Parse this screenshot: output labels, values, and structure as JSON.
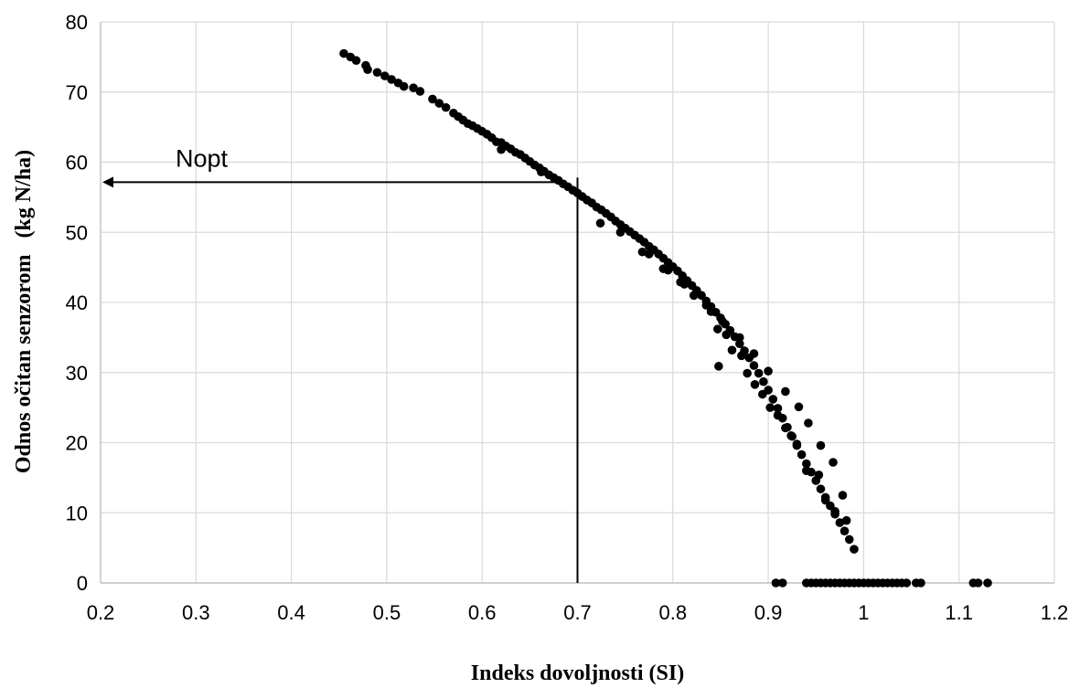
{
  "chart_data": {
    "type": "scatter",
    "title": "",
    "xlabel": "Indeks dovoljnosti (SI)",
    "ylabel": "Odnos očitan senzorom   (kg N/ha)",
    "xlim": [
      0.2,
      1.2
    ],
    "ylim": [
      0,
      80
    ],
    "xticks": [
      "0.2",
      "0.3",
      "0.4",
      "0.5",
      "0.6",
      "0.7",
      "0.8",
      "0.9",
      "1",
      "1.1",
      "1.2"
    ],
    "yticks": [
      "0",
      "10",
      "20",
      "30",
      "40",
      "50",
      "60",
      "70",
      "80"
    ],
    "grid": true,
    "legend": "none",
    "annotation": {
      "label": "Nopt",
      "si": 0.7,
      "n": 56.5
    },
    "marker_color": "#000000",
    "points": [
      {
        "x": 0.455,
        "y": 75.5
      },
      {
        "x": 0.462,
        "y": 75.0
      },
      {
        "x": 0.468,
        "y": 74.5
      },
      {
        "x": 0.478,
        "y": 73.8
      },
      {
        "x": 0.48,
        "y": 73.2
      },
      {
        "x": 0.49,
        "y": 72.8
      },
      {
        "x": 0.498,
        "y": 72.3
      },
      {
        "x": 0.505,
        "y": 71.8
      },
      {
        "x": 0.512,
        "y": 71.3
      },
      {
        "x": 0.518,
        "y": 70.8
      },
      {
        "x": 0.528,
        "y": 70.6
      },
      {
        "x": 0.535,
        "y": 70.1
      },
      {
        "x": 0.548,
        "y": 69.0
      },
      {
        "x": 0.555,
        "y": 68.4
      },
      {
        "x": 0.562,
        "y": 67.8
      },
      {
        "x": 0.57,
        "y": 67.0
      },
      {
        "x": 0.575,
        "y": 66.5
      },
      {
        "x": 0.58,
        "y": 66.0
      },
      {
        "x": 0.585,
        "y": 65.5
      },
      {
        "x": 0.59,
        "y": 65.2
      },
      {
        "x": 0.595,
        "y": 64.8
      },
      {
        "x": 0.6,
        "y": 64.4
      },
      {
        "x": 0.605,
        "y": 64.0
      },
      {
        "x": 0.61,
        "y": 63.5
      },
      {
        "x": 0.615,
        "y": 62.9
      },
      {
        "x": 0.62,
        "y": 62.8
      },
      {
        "x": 0.625,
        "y": 62.3
      },
      {
        "x": 0.63,
        "y": 61.9
      },
      {
        "x": 0.635,
        "y": 61.4
      },
      {
        "x": 0.64,
        "y": 61.1
      },
      {
        "x": 0.645,
        "y": 60.6
      },
      {
        "x": 0.65,
        "y": 60.1
      },
      {
        "x": 0.655,
        "y": 59.6
      },
      {
        "x": 0.66,
        "y": 59.2
      },
      {
        "x": 0.665,
        "y": 58.7
      },
      {
        "x": 0.67,
        "y": 58.2
      },
      {
        "x": 0.675,
        "y": 57.8
      },
      {
        "x": 0.68,
        "y": 57.4
      },
      {
        "x": 0.685,
        "y": 56.9
      },
      {
        "x": 0.69,
        "y": 56.5
      },
      {
        "x": 0.695,
        "y": 56.0
      },
      {
        "x": 0.7,
        "y": 55.6
      },
      {
        "x": 0.705,
        "y": 55.1
      },
      {
        "x": 0.71,
        "y": 54.6
      },
      {
        "x": 0.715,
        "y": 54.2
      },
      {
        "x": 0.72,
        "y": 53.6
      },
      {
        "x": 0.725,
        "y": 53.2
      },
      {
        "x": 0.73,
        "y": 52.7
      },
      {
        "x": 0.735,
        "y": 52.2
      },
      {
        "x": 0.74,
        "y": 51.6
      },
      {
        "x": 0.745,
        "y": 51.1
      },
      {
        "x": 0.75,
        "y": 50.6
      },
      {
        "x": 0.755,
        "y": 50.1
      },
      {
        "x": 0.76,
        "y": 49.6
      },
      {
        "x": 0.765,
        "y": 49.1
      },
      {
        "x": 0.77,
        "y": 48.6
      },
      {
        "x": 0.775,
        "y": 48.0
      },
      {
        "x": 0.78,
        "y": 47.5
      },
      {
        "x": 0.785,
        "y": 46.9
      },
      {
        "x": 0.79,
        "y": 46.3
      },
      {
        "x": 0.795,
        "y": 45.7
      },
      {
        "x": 0.8,
        "y": 45.1
      },
      {
        "x": 0.805,
        "y": 44.5
      },
      {
        "x": 0.81,
        "y": 43.8
      },
      {
        "x": 0.815,
        "y": 43.1
      },
      {
        "x": 0.82,
        "y": 42.4
      },
      {
        "x": 0.825,
        "y": 41.7
      },
      {
        "x": 0.83,
        "y": 41.0
      },
      {
        "x": 0.835,
        "y": 40.2
      },
      {
        "x": 0.84,
        "y": 39.4
      },
      {
        "x": 0.845,
        "y": 38.6
      },
      {
        "x": 0.85,
        "y": 37.8
      },
      {
        "x": 0.855,
        "y": 36.9
      },
      {
        "x": 0.86,
        "y": 36.0
      },
      {
        "x": 0.865,
        "y": 35.1
      },
      {
        "x": 0.87,
        "y": 34.1
      },
      {
        "x": 0.875,
        "y": 33.1
      },
      {
        "x": 0.88,
        "y": 32.1
      },
      {
        "x": 0.885,
        "y": 31.0
      },
      {
        "x": 0.89,
        "y": 29.9
      },
      {
        "x": 0.895,
        "y": 28.7
      },
      {
        "x": 0.9,
        "y": 27.5
      },
      {
        "x": 0.905,
        "y": 26.2
      },
      {
        "x": 0.91,
        "y": 24.9
      },
      {
        "x": 0.915,
        "y": 23.5
      },
      {
        "x": 0.92,
        "y": 22.2
      },
      {
        "x": 0.925,
        "y": 20.9
      },
      {
        "x": 0.93,
        "y": 19.6
      },
      {
        "x": 0.935,
        "y": 18.3
      },
      {
        "x": 0.94,
        "y": 17.0
      },
      {
        "x": 0.945,
        "y": 15.8
      },
      {
        "x": 0.95,
        "y": 14.6
      },
      {
        "x": 0.955,
        "y": 13.4
      },
      {
        "x": 0.96,
        "y": 12.2
      },
      {
        "x": 0.965,
        "y": 11.0
      },
      {
        "x": 0.97,
        "y": 9.8
      },
      {
        "x": 0.975,
        "y": 8.6
      },
      {
        "x": 0.98,
        "y": 7.4
      },
      {
        "x": 0.985,
        "y": 6.2
      },
      {
        "x": 0.99,
        "y": 4.8
      },
      {
        "x": 0.62,
        "y": 61.8
      },
      {
        "x": 0.662,
        "y": 58.6
      },
      {
        "x": 0.724,
        "y": 51.3
      },
      {
        "x": 0.745,
        "y": 50.0
      },
      {
        "x": 0.768,
        "y": 47.2
      },
      {
        "x": 0.79,
        "y": 44.8
      },
      {
        "x": 0.808,
        "y": 42.9
      },
      {
        "x": 0.822,
        "y": 41.0
      },
      {
        "x": 0.84,
        "y": 38.7
      },
      {
        "x": 0.847,
        "y": 36.2
      },
      {
        "x": 0.856,
        "y": 35.4
      },
      {
        "x": 0.862,
        "y": 33.2
      },
      {
        "x": 0.848,
        "y": 30.9
      },
      {
        "x": 0.872,
        "y": 32.4
      },
      {
        "x": 0.878,
        "y": 29.9
      },
      {
        "x": 0.886,
        "y": 28.3
      },
      {
        "x": 0.894,
        "y": 26.9
      },
      {
        "x": 0.902,
        "y": 25.0
      },
      {
        "x": 0.91,
        "y": 23.9
      },
      {
        "x": 0.918,
        "y": 22.1
      },
      {
        "x": 0.924,
        "y": 21.0
      },
      {
        "x": 0.93,
        "y": 19.8
      },
      {
        "x": 0.94,
        "y": 16.0
      },
      {
        "x": 0.953,
        "y": 15.4
      },
      {
        "x": 0.96,
        "y": 11.8
      },
      {
        "x": 0.97,
        "y": 10.2
      },
      {
        "x": 0.982,
        "y": 8.9
      },
      {
        "x": 0.978,
        "y": 12.5
      },
      {
        "x": 0.968,
        "y": 17.2
      },
      {
        "x": 0.955,
        "y": 19.6
      },
      {
        "x": 0.942,
        "y": 22.8
      },
      {
        "x": 0.932,
        "y": 25.1
      },
      {
        "x": 0.918,
        "y": 27.3
      },
      {
        "x": 0.9,
        "y": 30.2
      },
      {
        "x": 0.885,
        "y": 32.7
      },
      {
        "x": 0.87,
        "y": 35.0
      },
      {
        "x": 0.852,
        "y": 37.3
      },
      {
        "x": 0.835,
        "y": 39.6
      },
      {
        "x": 0.812,
        "y": 42.6
      },
      {
        "x": 0.795,
        "y": 44.6
      },
      {
        "x": 0.775,
        "y": 46.9
      },
      {
        "x": 0.908,
        "y": 0
      },
      {
        "x": 0.915,
        "y": 0
      },
      {
        "x": 0.94,
        "y": 0
      },
      {
        "x": 0.945,
        "y": 0
      },
      {
        "x": 0.95,
        "y": 0
      },
      {
        "x": 0.955,
        "y": 0
      },
      {
        "x": 0.96,
        "y": 0
      },
      {
        "x": 0.965,
        "y": 0
      },
      {
        "x": 0.97,
        "y": 0
      },
      {
        "x": 0.975,
        "y": 0
      },
      {
        "x": 0.98,
        "y": 0
      },
      {
        "x": 0.985,
        "y": 0
      },
      {
        "x": 0.99,
        "y": 0
      },
      {
        "x": 0.995,
        "y": 0
      },
      {
        "x": 1.0,
        "y": 0
      },
      {
        "x": 1.005,
        "y": 0
      },
      {
        "x": 1.01,
        "y": 0
      },
      {
        "x": 1.015,
        "y": 0
      },
      {
        "x": 1.02,
        "y": 0
      },
      {
        "x": 1.025,
        "y": 0
      },
      {
        "x": 1.03,
        "y": 0
      },
      {
        "x": 1.035,
        "y": 0
      },
      {
        "x": 1.04,
        "y": 0
      },
      {
        "x": 1.045,
        "y": 0
      },
      {
        "x": 1.055,
        "y": 0
      },
      {
        "x": 1.06,
        "y": 0
      },
      {
        "x": 1.115,
        "y": 0
      },
      {
        "x": 1.12,
        "y": 0
      },
      {
        "x": 1.13,
        "y": 0
      }
    ]
  }
}
